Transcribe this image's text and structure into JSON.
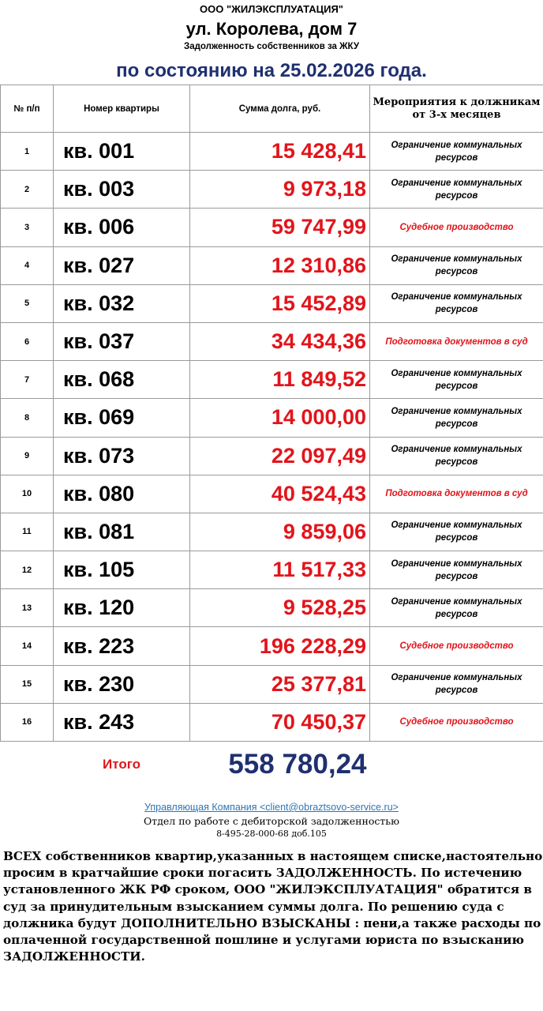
{
  "header": {
    "org": "ООО \"ЖИЛЭКСПЛУАТАЦИЯ\"",
    "address": "ул. Королева, дом 7",
    "subtitle": "Задолженность собственников за ЖКУ",
    "date_line": "по состоянию на 25.02.2026 года."
  },
  "columns": [
    "№ п/п",
    "Номер квартиры",
    "Сумма долга, руб.",
    "Мероприятия к должникам от 3-х месяцев"
  ],
  "rows": [
    {
      "n": "1",
      "apt": "кв. 001",
      "sum": "15 428,41",
      "action": "Ограничение  коммунальных ресурсов",
      "status": "restriction"
    },
    {
      "n": "2",
      "apt": "кв. 003",
      "sum": "9 973,18",
      "action": "Ограничение  коммунальных ресурсов",
      "status": "restriction"
    },
    {
      "n": "3",
      "apt": "кв. 006",
      "sum": "59 747,99",
      "action": "Судебное производство",
      "status": "court"
    },
    {
      "n": "4",
      "apt": "кв. 027",
      "sum": "12 310,86",
      "action": "Ограничение  коммунальных ресурсов",
      "status": "restriction"
    },
    {
      "n": "5",
      "apt": "кв. 032",
      "sum": "15 452,89",
      "action": "Ограничение  коммунальных ресурсов",
      "status": "restriction"
    },
    {
      "n": "6",
      "apt": "кв. 037",
      "sum": "34 434,36",
      "action": "Подготовка документов в суд",
      "status": "court"
    },
    {
      "n": "7",
      "apt": "кв. 068",
      "sum": "11 849,52",
      "action": "Ограничение  коммунальных ресурсов",
      "status": "restriction"
    },
    {
      "n": "8",
      "apt": "кв. 069",
      "sum": "14 000,00",
      "action": "Ограничение  коммунальных ресурсов",
      "status": "restriction"
    },
    {
      "n": "9",
      "apt": "кв. 073",
      "sum": "22 097,49",
      "action": "Ограничение  коммунальных ресурсов",
      "status": "restriction"
    },
    {
      "n": "10",
      "apt": "кв. 080",
      "sum": "40 524,43",
      "action": "Подготовка документов в суд",
      "status": "court"
    },
    {
      "n": "11",
      "apt": "кв. 081",
      "sum": "9 859,06",
      "action": "Ограничение  коммунальных ресурсов",
      "status": "restriction"
    },
    {
      "n": "12",
      "apt": "кв. 105",
      "sum": "11 517,33",
      "action": "Ограничение  коммунальных ресурсов",
      "status": "restriction"
    },
    {
      "n": "13",
      "apt": "кв. 120",
      "sum": "9 528,25",
      "action": "Ограничение  коммунальных ресурсов",
      "status": "restriction"
    },
    {
      "n": "14",
      "apt": "кв. 223",
      "sum": "196 228,29",
      "action": "Судебное производство",
      "status": "court"
    },
    {
      "n": "15",
      "apt": "кв. 230",
      "sum": "25 377,81",
      "action": "Ограничение  коммунальных ресурсов",
      "status": "restriction"
    },
    {
      "n": "16",
      "apt": "кв. 243",
      "sum": "70 450,37",
      "action": "Судебное производство",
      "status": "court"
    }
  ],
  "total": {
    "label": "Итого",
    "value": "558 780,24"
  },
  "footer": {
    "link": "Управляющая Компания <client@obraztsovo-service.ru>",
    "dept": "Отдел по работе с дебиторской задолженностью",
    "phone": "8-495-28-000-68 доб.105"
  },
  "notice": "ВСЕХ собственников квартир,указанных в настоящем списке,настоятельно просим в кратчайшие сроки погасить ЗАДОЛЖЕННОСТЬ.  По истечению установленного ЖК РФ сроком, ООО \"ЖИЛЭКСПЛУАТАЦИЯ\" обратится в суд за принудительным взысканием суммы долга. По решению суда с должника будут ДОПОЛНИТЕЛЬНО ВЗЫСКАНЫ : пени,а также расходы по оплаченной государственной пошлине и услугами юриста по взысканию ЗАДОЛЖЕННОСТИ.",
  "colors": {
    "debt": "#e2141b",
    "title": "#1f3070",
    "link": "#2e75b6"
  }
}
